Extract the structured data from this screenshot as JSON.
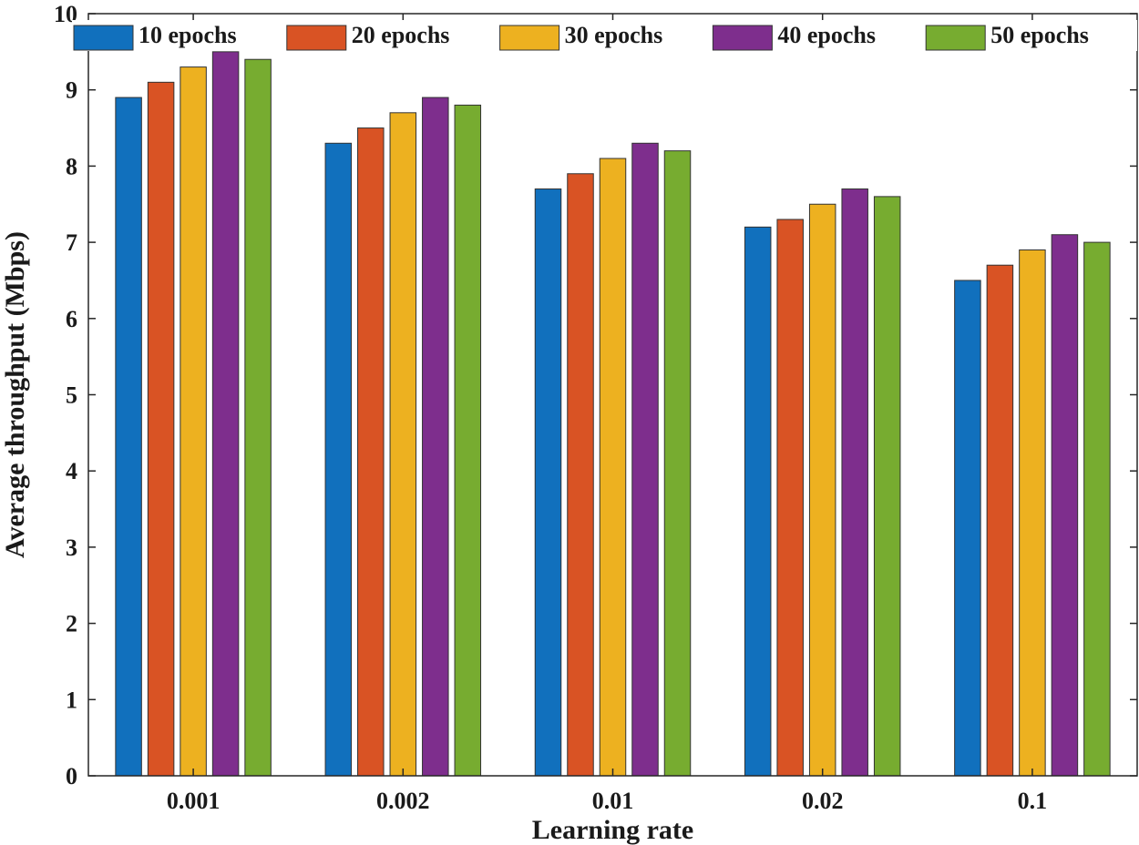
{
  "chart_data": {
    "type": "bar",
    "title": "",
    "xlabel": "Learning rate",
    "ylabel": "Average throughput (Mbps)",
    "ylim": [
      0,
      10
    ],
    "yticks": [
      "0",
      "1",
      "2",
      "3",
      "4",
      "5",
      "6",
      "7",
      "8",
      "9",
      "10"
    ],
    "categories": [
      "0.001",
      "0.002",
      "0.01",
      "0.02",
      "0.1"
    ],
    "grid": false,
    "legend_position": "top",
    "series": [
      {
        "name": "10 epochs",
        "color": "#1170BD",
        "values": [
          8.9,
          8.3,
          7.7,
          7.2,
          6.5
        ]
      },
      {
        "name": "20 epochs",
        "color": "#D95324",
        "values": [
          9.1,
          8.5,
          7.9,
          7.3,
          6.7
        ]
      },
      {
        "name": "30 epochs",
        "color": "#EDB120",
        "values": [
          9.3,
          8.7,
          8.1,
          7.5,
          6.9
        ]
      },
      {
        "name": "40 epochs",
        "color": "#7E2E8D",
        "values": [
          9.5,
          8.9,
          8.3,
          7.7,
          7.1
        ]
      },
      {
        "name": "50 epochs",
        "color": "#77AC30",
        "values": [
          9.4,
          8.8,
          8.2,
          7.6,
          7.0
        ]
      }
    ]
  }
}
